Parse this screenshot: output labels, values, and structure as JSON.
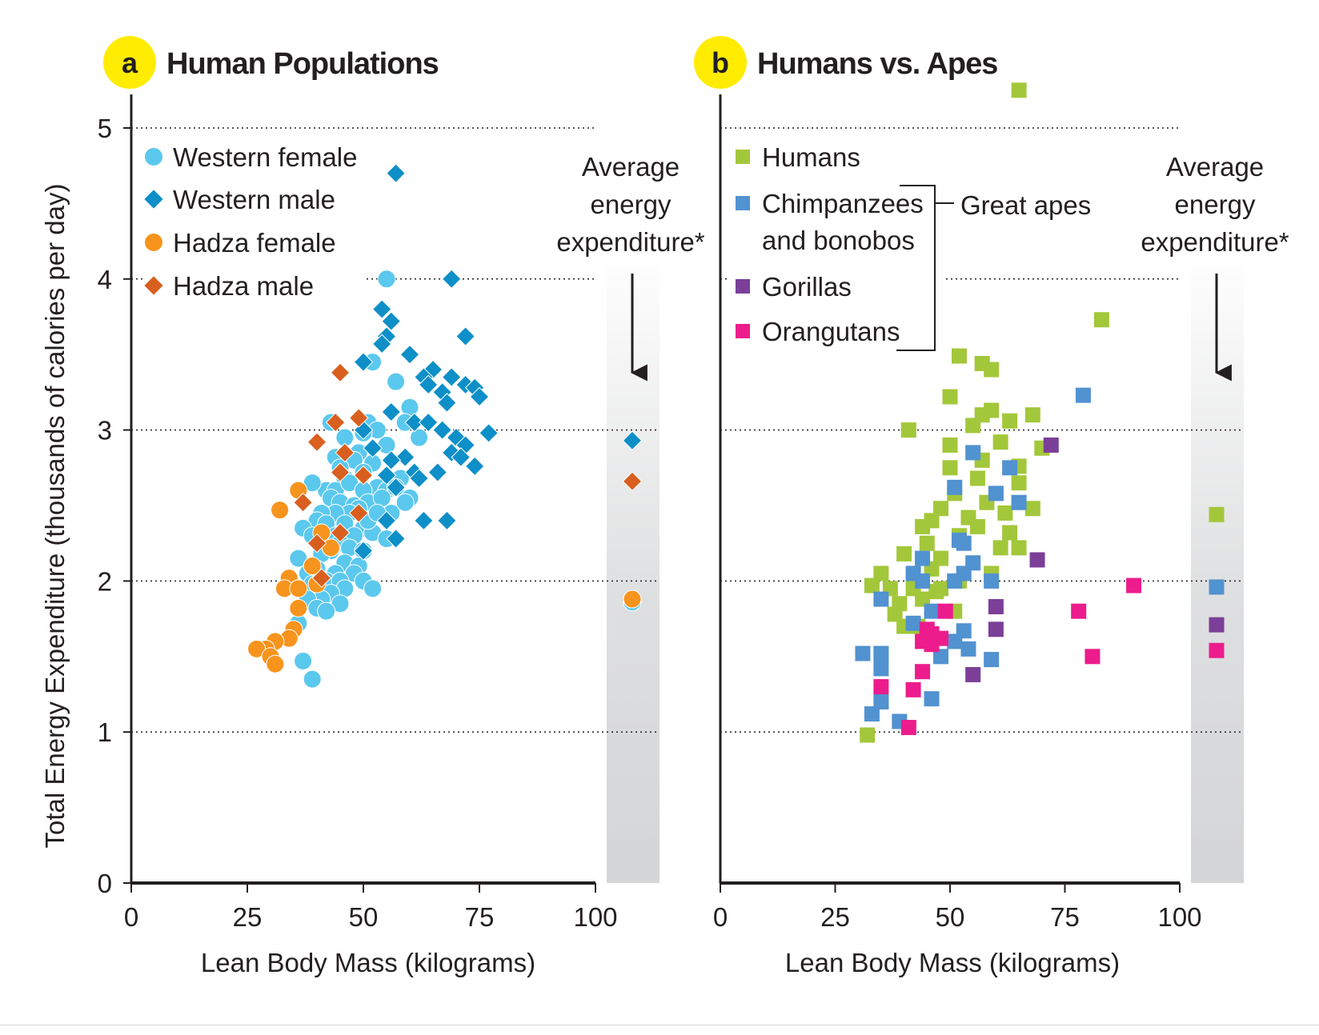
{
  "chart_data": [
    {
      "type": "scatter",
      "badge": "a",
      "title": "Human Populations",
      "xlabel": "Lean Body Mass (kilograms)",
      "ylabel": "Total Energy Expenditure (thousands of calories per day)",
      "xlim": [
        0,
        100
      ],
      "ylim": [
        0,
        5.2
      ],
      "xticks": [
        "0",
        "25",
        "50",
        "75",
        "100"
      ],
      "yticks": [
        "0",
        "1",
        "2",
        "3",
        "4",
        "5"
      ],
      "grid": "horizontal dotted at 1, 2, 3, 4, 5",
      "legend_position": "top-left",
      "average_label": [
        "Average",
        "energy",
        "expenditure*"
      ],
      "series": [
        {
          "name": "Western female",
          "marker": "circle",
          "color": "#5bc8ee",
          "average": 1.86,
          "points": [
            [
              55,
              4.0
            ],
            [
              52,
              3.45
            ],
            [
              57,
              3.32
            ],
            [
              43,
              3.05
            ],
            [
              60,
              3.15
            ],
            [
              59,
              3.05
            ],
            [
              51,
              3.05
            ],
            [
              53,
              3.0
            ],
            [
              50,
              2.98
            ],
            [
              46,
              2.95
            ],
            [
              62,
              2.95
            ],
            [
              55,
              2.9
            ],
            [
              49,
              2.85
            ],
            [
              44,
              2.82
            ],
            [
              48,
              2.8
            ],
            [
              52,
              2.78
            ],
            [
              45,
              2.75
            ],
            [
              50,
              2.72
            ],
            [
              58,
              2.68
            ],
            [
              46,
              2.68
            ],
            [
              42,
              2.6
            ],
            [
              44,
              2.6
            ],
            [
              47,
              2.65
            ],
            [
              53,
              2.62
            ],
            [
              50,
              2.6
            ],
            [
              55,
              2.6
            ],
            [
              57,
              2.62
            ],
            [
              60,
              2.55
            ],
            [
              39,
              2.65
            ],
            [
              43,
              2.55
            ],
            [
              45,
              2.52
            ],
            [
              48,
              2.5
            ],
            [
              51,
              2.52
            ],
            [
              49,
              2.48
            ],
            [
              47,
              2.45
            ],
            [
              44,
              2.45
            ],
            [
              41,
              2.45
            ],
            [
              56,
              2.45
            ],
            [
              40,
              2.4
            ],
            [
              42,
              2.38
            ],
            [
              46,
              2.38
            ],
            [
              50,
              2.35
            ],
            [
              52,
              2.32
            ],
            [
              48,
              2.3
            ],
            [
              37,
              2.35
            ],
            [
              44,
              2.3
            ],
            [
              39,
              2.3
            ],
            [
              45,
              2.25
            ],
            [
              47,
              2.22
            ],
            [
              50,
              2.2
            ],
            [
              43,
              2.2
            ],
            [
              41,
              2.18
            ],
            [
              36,
              2.15
            ],
            [
              46,
              2.12
            ],
            [
              49,
              2.1
            ],
            [
              48,
              2.05
            ],
            [
              44,
              2.05
            ],
            [
              40,
              2.08
            ],
            [
              38,
              2.05
            ],
            [
              42,
              2.0
            ],
            [
              45,
              2.0
            ],
            [
              50,
              2.0
            ],
            [
              39,
              1.98
            ],
            [
              46,
              1.95
            ],
            [
              52,
              1.95
            ],
            [
              43,
              1.92
            ],
            [
              41,
              1.88
            ],
            [
              38,
              1.88
            ],
            [
              45,
              1.85
            ],
            [
              40,
              1.82
            ],
            [
              42,
              1.8
            ],
            [
              36,
              1.72
            ],
            [
              37,
              1.47
            ],
            [
              39,
              1.35
            ],
            [
              55,
              2.28
            ],
            [
              54,
              2.55
            ],
            [
              59,
              2.52
            ],
            [
              51,
              2.4
            ],
            [
              53,
              2.45
            ]
          ]
        },
        {
          "name": "Western male",
          "marker": "diamond",
          "color": "#0e8fc8",
          "average": 2.93,
          "points": [
            [
              57,
              4.7
            ],
            [
              69,
              4.0
            ],
            [
              54,
              3.8
            ],
            [
              56,
              3.72
            ],
            [
              55,
              3.62
            ],
            [
              54,
              3.57
            ],
            [
              72,
              3.62
            ],
            [
              50,
              3.45
            ],
            [
              60,
              3.5
            ],
            [
              65,
              3.4
            ],
            [
              63,
              3.35
            ],
            [
              69,
              3.35
            ],
            [
              64,
              3.3
            ],
            [
              67,
              3.25
            ],
            [
              72,
              3.3
            ],
            [
              74,
              3.28
            ],
            [
              75,
              3.22
            ],
            [
              68,
              3.18
            ],
            [
              56,
              3.12
            ],
            [
              61,
              3.05
            ],
            [
              64,
              3.05
            ],
            [
              67,
              3.0
            ],
            [
              70,
              2.95
            ],
            [
              72,
              2.9
            ],
            [
              77,
              2.98
            ],
            [
              69,
              2.85
            ],
            [
              71,
              2.82
            ],
            [
              59,
              2.82
            ],
            [
              56,
              2.8
            ],
            [
              52,
              2.88
            ],
            [
              50,
              3.0
            ],
            [
              55,
              2.7
            ],
            [
              57,
              2.62
            ],
            [
              61,
              2.72
            ],
            [
              62,
              2.68
            ],
            [
              66,
              2.72
            ],
            [
              74,
              2.76
            ],
            [
              55,
              2.4
            ],
            [
              63,
              2.4
            ],
            [
              68,
              2.4
            ],
            [
              57,
              2.28
            ],
            [
              50,
              2.2
            ]
          ]
        },
        {
          "name": "Hadza female",
          "marker": "circle",
          "color": "#f7941d",
          "average": 1.88,
          "points": [
            [
              36,
              2.6
            ],
            [
              32,
              2.47
            ],
            [
              39,
              2.1
            ],
            [
              41,
              2.32
            ],
            [
              43,
              2.22
            ],
            [
              34,
              2.02
            ],
            [
              33,
              1.95
            ],
            [
              36,
              1.95
            ],
            [
              40,
              1.98
            ],
            [
              36,
              1.82
            ],
            [
              35,
              1.68
            ],
            [
              34,
              1.62
            ],
            [
              31,
              1.6
            ],
            [
              29,
              1.55
            ],
            [
              27,
              1.55
            ],
            [
              30,
              1.5
            ],
            [
              31,
              1.45
            ]
          ]
        },
        {
          "name": "Hadza male",
          "marker": "diamond",
          "color": "#d95f1e",
          "average": 2.66,
          "points": [
            [
              45,
              3.38
            ],
            [
              49,
              3.08
            ],
            [
              44,
              3.05
            ],
            [
              40,
              2.92
            ],
            [
              46,
              2.85
            ],
            [
              45,
              2.72
            ],
            [
              50,
              2.7
            ],
            [
              37,
              2.52
            ],
            [
              49,
              2.45
            ],
            [
              45,
              2.32
            ],
            [
              40,
              2.25
            ],
            [
              41,
              2.02
            ]
          ]
        }
      ]
    },
    {
      "type": "scatter",
      "badge": "b",
      "title": "Humans vs. Apes",
      "xlabel": "Lean Body Mass (kilograms)",
      "xlim": [
        0,
        100
      ],
      "ylim": [
        0,
        5.2
      ],
      "xticks": [
        "0",
        "25",
        "50",
        "75",
        "100"
      ],
      "grid": "horizontal dotted at 1, 2, 3, 4, 5",
      "legend_position": "top-left",
      "bracket_label": "Great apes",
      "average_label": [
        "Average",
        "energy",
        "expenditure*"
      ],
      "series": [
        {
          "name": "Humans",
          "marker": "square",
          "color": "#a3c73a",
          "average": 2.44,
          "points": [
            [
              65,
              5.25
            ],
            [
              83,
              3.73
            ],
            [
              52,
              3.49
            ],
            [
              57,
              3.44
            ],
            [
              59,
              3.4
            ],
            [
              50,
              3.22
            ],
            [
              57,
              3.1
            ],
            [
              59,
              3.13
            ],
            [
              55,
              3.03
            ],
            [
              63,
              3.06
            ],
            [
              68,
              3.1
            ],
            [
              41,
              3.0
            ],
            [
              50,
              2.9
            ],
            [
              61,
              2.92
            ],
            [
              70,
              2.88
            ],
            [
              57,
              2.8
            ],
            [
              65,
              2.76
            ],
            [
              50,
              2.75
            ],
            [
              56,
              2.68
            ],
            [
              65,
              2.65
            ],
            [
              51,
              2.58
            ],
            [
              58,
              2.52
            ],
            [
              48,
              2.48
            ],
            [
              54,
              2.42
            ],
            [
              62,
              2.45
            ],
            [
              68,
              2.48
            ],
            [
              46,
              2.4
            ],
            [
              44,
              2.36
            ],
            [
              56,
              2.36
            ],
            [
              52,
              2.3
            ],
            [
              45,
              2.25
            ],
            [
              63,
              2.32
            ],
            [
              61,
              2.22
            ],
            [
              65,
              2.22
            ],
            [
              40,
              2.18
            ],
            [
              48,
              2.15
            ],
            [
              46,
              2.08
            ],
            [
              52,
              2.0
            ],
            [
              35,
              2.05
            ],
            [
              37,
              1.95
            ],
            [
              33,
              1.97
            ],
            [
              42,
              1.95
            ],
            [
              47,
              1.93
            ],
            [
              44,
              1.88
            ],
            [
              39,
              1.85
            ],
            [
              51,
              1.8
            ],
            [
              38,
              1.78
            ],
            [
              43,
              1.7
            ],
            [
              40,
              1.7
            ],
            [
              35,
              1.52
            ],
            [
              35,
              1.2
            ],
            [
              32,
              0.98
            ],
            [
              59,
              2.05
            ],
            [
              48,
              1.95
            ]
          ]
        },
        {
          "name": "Chimpanzees and bonobos",
          "marker": "square",
          "color": "#5192d0",
          "average": 1.96,
          "points": [
            [
              79,
              3.23
            ],
            [
              55,
              2.85
            ],
            [
              63,
              2.75
            ],
            [
              51,
              2.62
            ],
            [
              60,
              2.58
            ],
            [
              65,
              2.52
            ],
            [
              52,
              2.27
            ],
            [
              53,
              2.25
            ],
            [
              44,
              2.15
            ],
            [
              55,
              2.12
            ],
            [
              42,
              2.05
            ],
            [
              53,
              2.05
            ],
            [
              44,
              2.0
            ],
            [
              59,
              2.0
            ],
            [
              51,
              2.0
            ],
            [
              35,
              1.88
            ],
            [
              46,
              1.8
            ],
            [
              42,
              1.72
            ],
            [
              53,
              1.67
            ],
            [
              51,
              1.6
            ],
            [
              54,
              1.55
            ],
            [
              31,
              1.52
            ],
            [
              35,
              1.52
            ],
            [
              48,
              1.5
            ],
            [
              59,
              1.48
            ],
            [
              35,
              1.42
            ],
            [
              46,
              1.22
            ],
            [
              35,
              1.2
            ],
            [
              33,
              1.12
            ],
            [
              39,
              1.07
            ]
          ]
        },
        {
          "name": "Gorillas",
          "marker": "square",
          "color": "#7b3f98",
          "average": 1.71,
          "points": [
            [
              72,
              2.9
            ],
            [
              69,
              2.14
            ],
            [
              60,
              1.83
            ],
            [
              60,
              1.68
            ],
            [
              55,
              1.38
            ]
          ]
        },
        {
          "name": "Orangutans",
          "marker": "square",
          "color": "#ec1c8c",
          "average": 1.54,
          "points": [
            [
              90,
              1.97
            ],
            [
              49,
              1.8
            ],
            [
              78,
              1.8
            ],
            [
              45,
              1.68
            ],
            [
              46,
              1.65
            ],
            [
              48,
              1.62
            ],
            [
              44,
              1.6
            ],
            [
              46,
              1.58
            ],
            [
              81,
              1.5
            ],
            [
              44,
              1.4
            ],
            [
              35,
              1.3
            ],
            [
              42,
              1.28
            ],
            [
              41,
              1.03
            ]
          ]
        }
      ]
    }
  ]
}
